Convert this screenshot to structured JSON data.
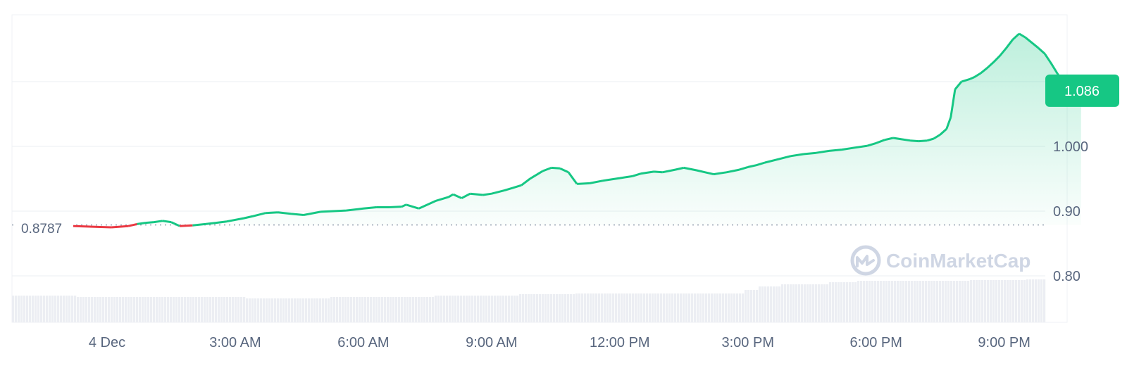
{
  "chart_data": {
    "type": "area",
    "title": "",
    "xlabel": "",
    "ylabel": "",
    "x_unit": "hours since midnight, 4 Dec",
    "x_range": [
      -1.45,
      22.8
    ],
    "ylim": [
      0.73,
      1.2
    ],
    "y_ticks": [
      {
        "value": 0.8,
        "label": "0.80"
      },
      {
        "value": 0.9,
        "label": "0.90"
      },
      {
        "value": 1.0,
        "label": "1.000"
      }
    ],
    "x_ticks": [
      {
        "value": 0,
        "label": "4 Dec"
      },
      {
        "value": 3,
        "label": "3:00 AM"
      },
      {
        "value": 6,
        "label": "6:00 AM"
      },
      {
        "value": 9,
        "label": "9:00 AM"
      },
      {
        "value": 12,
        "label": "12:00 PM"
      },
      {
        "value": 15,
        "label": "3:00 PM"
      },
      {
        "value": 18,
        "label": "6:00 PM"
      },
      {
        "value": 21,
        "label": "9:00 PM"
      }
    ],
    "reference": {
      "value": 0.8787,
      "label": "0.8787"
    },
    "current": {
      "value": 1.086,
      "label": "1.086"
    },
    "colors": {
      "up": "#16c784",
      "down": "#ea3943",
      "badge": "#16c784",
      "grid": "#eff2f5",
      "volume": "#eceef3",
      "axis_text": "#58667e",
      "watermark": "#cfd6e4"
    },
    "watermark": "CoinMarketCap",
    "grid": true,
    "series": [
      {
        "values": [
          [
            -1.45,
            0.881
          ],
          [
            -1.3,
            0.878
          ],
          [
            0.1,
            0.875
          ],
          [
            0.3,
            0.876
          ],
          [
            0.5,
            0.877
          ],
          [
            0.7,
            0.88
          ],
          [
            0.9,
            0.882
          ],
          [
            1.1,
            0.883
          ],
          [
            1.3,
            0.885
          ],
          [
            1.5,
            0.883
          ],
          [
            1.7,
            0.877
          ],
          [
            2.0,
            0.878
          ],
          [
            2.3,
            0.88
          ],
          [
            2.55,
            0.882
          ],
          [
            2.8,
            0.884
          ],
          [
            3.2,
            0.889
          ],
          [
            3.4,
            0.892
          ],
          [
            3.7,
            0.897
          ],
          [
            4.0,
            0.898
          ],
          [
            4.3,
            0.896
          ],
          [
            4.6,
            0.894
          ],
          [
            5.0,
            0.899
          ],
          [
            5.3,
            0.9
          ],
          [
            5.6,
            0.901
          ],
          [
            6.0,
            0.904
          ],
          [
            6.3,
            0.906
          ],
          [
            6.6,
            0.906
          ],
          [
            6.9,
            0.907
          ],
          [
            7.0,
            0.91
          ],
          [
            7.3,
            0.904
          ],
          [
            7.5,
            0.91
          ],
          [
            7.7,
            0.916
          ],
          [
            8.0,
            0.922
          ],
          [
            8.1,
            0.926
          ],
          [
            8.3,
            0.92
          ],
          [
            8.5,
            0.927
          ],
          [
            8.8,
            0.925
          ],
          [
            9.0,
            0.927
          ],
          [
            9.3,
            0.932
          ],
          [
            9.5,
            0.936
          ],
          [
            9.7,
            0.94
          ],
          [
            9.9,
            0.95
          ],
          [
            10.0,
            0.954
          ],
          [
            10.2,
            0.962
          ],
          [
            10.4,
            0.967
          ],
          [
            10.6,
            0.966
          ],
          [
            10.8,
            0.96
          ],
          [
            11.0,
            0.942
          ],
          [
            11.3,
            0.943
          ],
          [
            11.6,
            0.947
          ],
          [
            12.0,
            0.951
          ],
          [
            12.3,
            0.954
          ],
          [
            12.5,
            0.958
          ],
          [
            12.8,
            0.961
          ],
          [
            13.0,
            0.96
          ],
          [
            13.3,
            0.964
          ],
          [
            13.5,
            0.967
          ],
          [
            13.8,
            0.963
          ],
          [
            14.0,
            0.96
          ],
          [
            14.2,
            0.957
          ],
          [
            14.5,
            0.96
          ],
          [
            14.8,
            0.964
          ],
          [
            15.0,
            0.968
          ],
          [
            15.2,
            0.971
          ],
          [
            15.4,
            0.975
          ],
          [
            15.7,
            0.98
          ],
          [
            16.0,
            0.985
          ],
          [
            16.3,
            0.988
          ],
          [
            16.6,
            0.99
          ],
          [
            16.9,
            0.993
          ],
          [
            17.2,
            0.995
          ],
          [
            17.5,
            0.998
          ],
          [
            17.8,
            1.001
          ],
          [
            18.0,
            1.005
          ],
          [
            18.2,
            1.01
          ],
          [
            18.4,
            1.013
          ],
          [
            18.6,
            1.011
          ],
          [
            18.8,
            1.009
          ],
          [
            19.0,
            1.008
          ],
          [
            19.2,
            1.009
          ],
          [
            19.35,
            1.012
          ],
          [
            19.5,
            1.018
          ],
          [
            19.65,
            1.027
          ],
          [
            19.75,
            1.045
          ],
          [
            19.85,
            1.088
          ],
          [
            20.0,
            1.1
          ],
          [
            20.2,
            1.104
          ],
          [
            20.3,
            1.107
          ],
          [
            20.45,
            1.113
          ],
          [
            20.6,
            1.121
          ],
          [
            20.75,
            1.13
          ],
          [
            20.9,
            1.14
          ],
          [
            21.05,
            1.152
          ],
          [
            21.2,
            1.165
          ],
          [
            21.35,
            1.174
          ],
          [
            21.5,
            1.168
          ],
          [
            21.65,
            1.16
          ],
          [
            21.8,
            1.152
          ],
          [
            21.95,
            1.143
          ],
          [
            22.1,
            1.128
          ],
          [
            22.25,
            1.112
          ],
          [
            22.4,
            1.097
          ],
          [
            22.55,
            1.089
          ],
          [
            22.7,
            1.078
          ],
          [
            22.8,
            1.071
          ]
        ],
        "color": "#16c784"
      }
    ]
  }
}
